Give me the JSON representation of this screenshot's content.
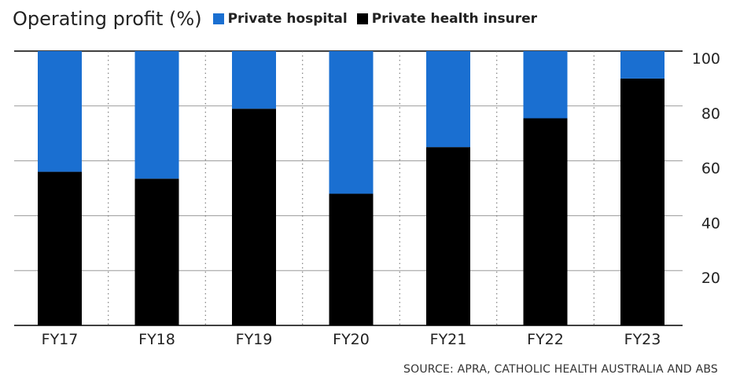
{
  "header": {
    "title": "Operating profit (%)"
  },
  "legend": [
    {
      "label": "Private hospital",
      "color": "#1a6fd1"
    },
    {
      "label": "Private health insurer",
      "color": "#000000"
    }
  ],
  "chart_data": {
    "type": "bar",
    "stacked": true,
    "title": "Operating profit (%)",
    "categories": [
      "FY17",
      "FY18",
      "FY19",
      "FY20",
      "FY21",
      "FY22",
      "FY23"
    ],
    "series": [
      {
        "name": "Private health insurer",
        "color": "#000000",
        "values": [
          56,
          53.5,
          79,
          48,
          65,
          75.5,
          90
        ]
      },
      {
        "name": "Private hospital",
        "color": "#1a6fd1",
        "values": [
          44,
          46.5,
          21,
          52,
          35,
          24.5,
          10
        ]
      }
    ],
    "ylim": [
      0,
      100
    ],
    "yticks": [
      20,
      40,
      60,
      80,
      100
    ],
    "y_axis_side": "right",
    "grid": true,
    "legend_position": "top"
  },
  "source": "SOURCE: APRA, CATHOLIC HEALTH AUSTRALIA AND ABS"
}
